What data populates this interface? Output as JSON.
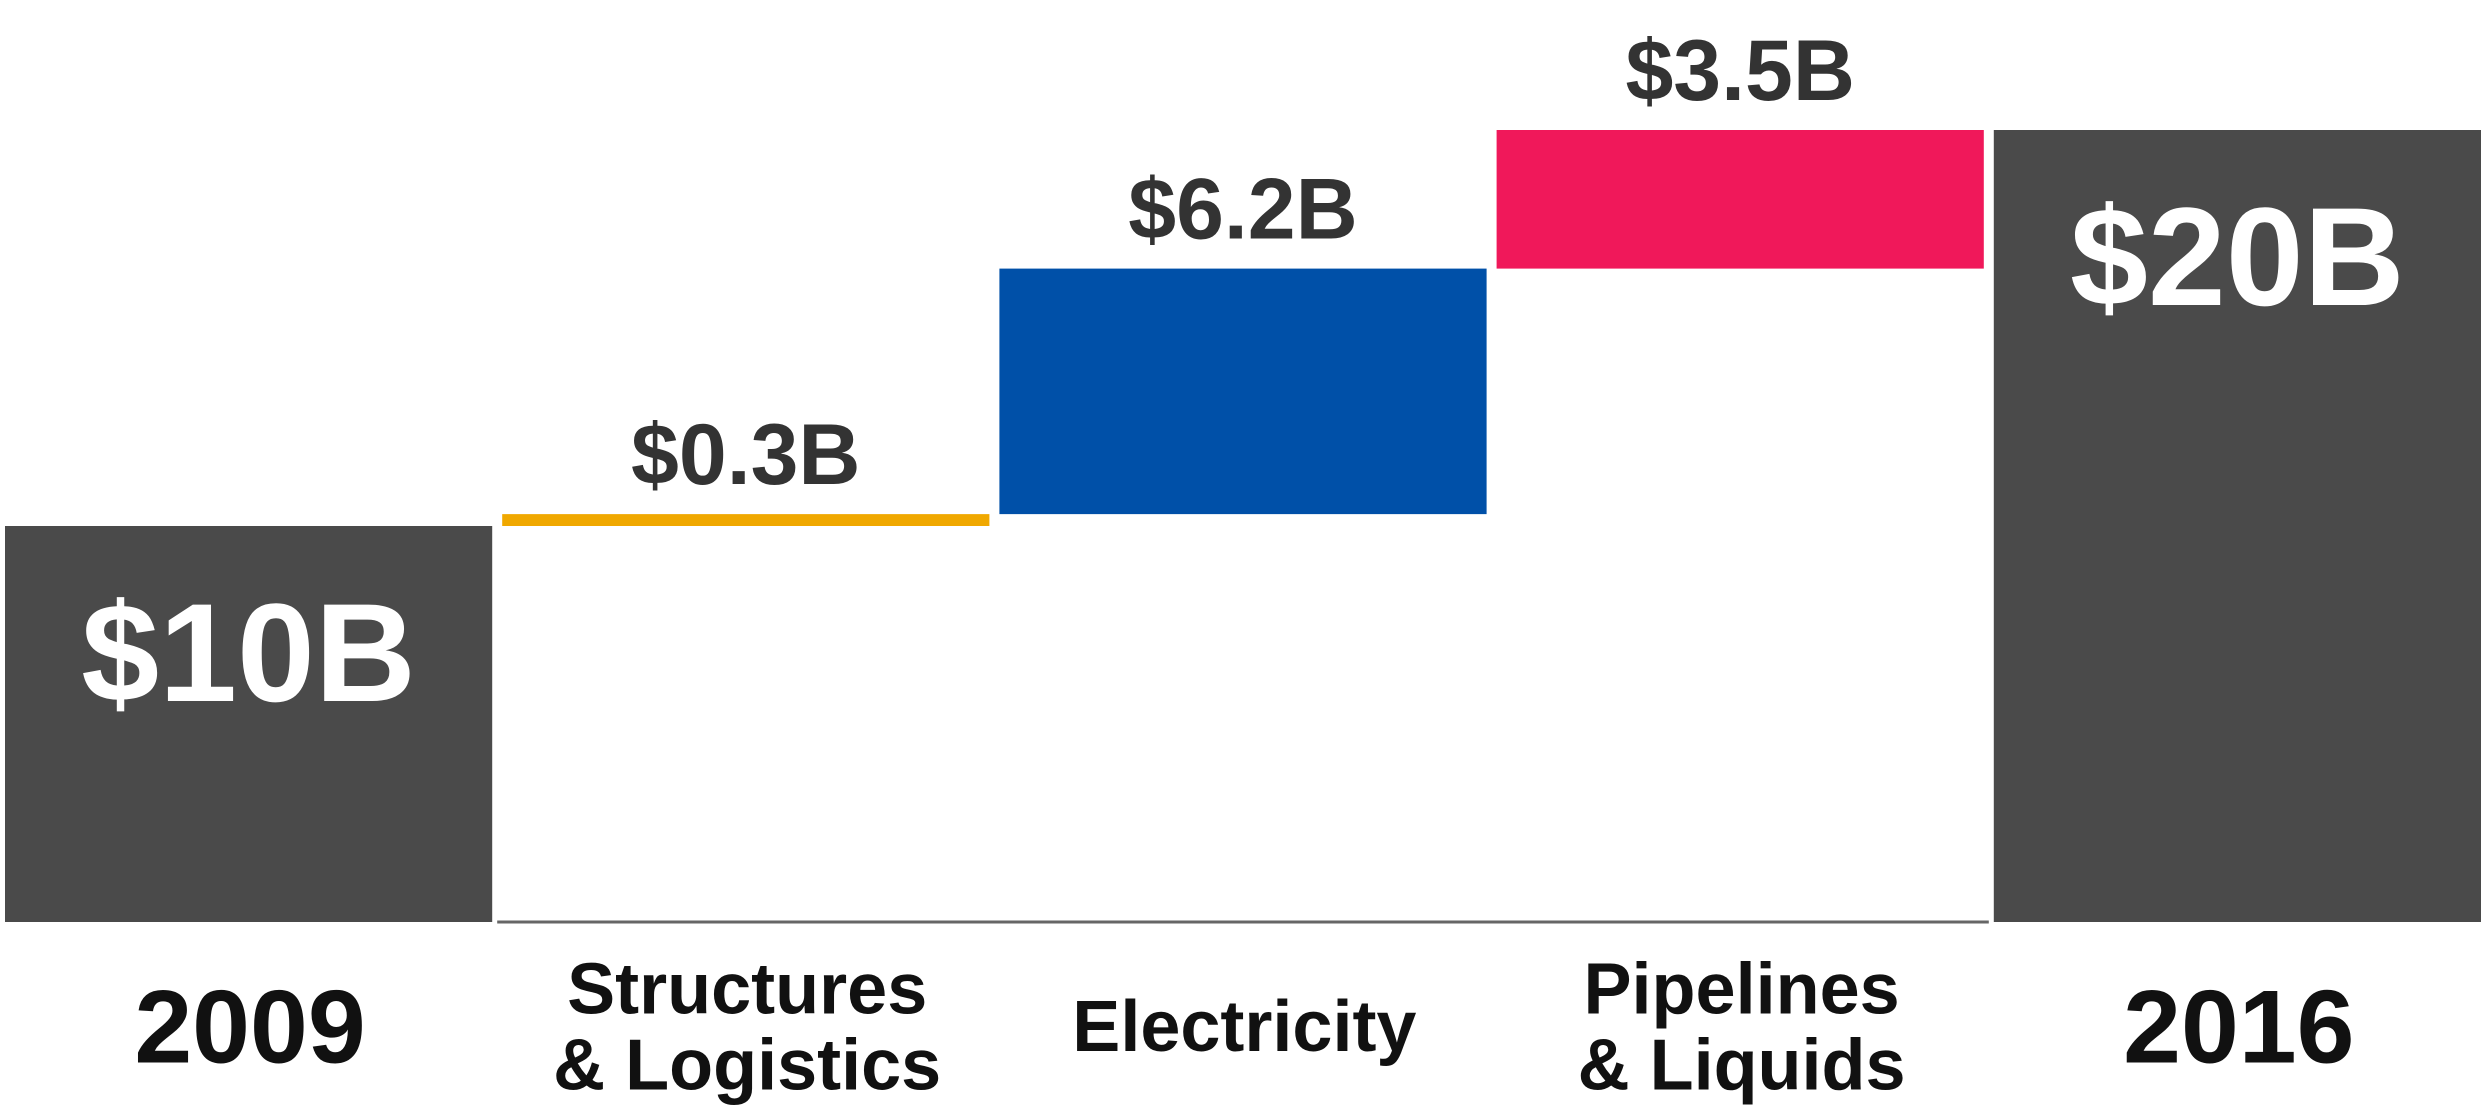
{
  "chart_data": {
    "type": "waterfall",
    "categories": [
      "2009",
      "Structures\n& Logistics",
      "Electricity",
      "Pipelines\n& Liquids",
      "2016"
    ],
    "values": [
      10,
      0.3,
      6.2,
      3.5,
      20
    ],
    "value_labels": [
      "$10B",
      "$0.3B",
      "$6.2B",
      "$3.5B",
      "$20B"
    ],
    "colors": [
      "#4a4a4a",
      "#f0a800",
      "#0050a8",
      "#f0185a",
      "#4a4a4a"
    ]
  }
}
